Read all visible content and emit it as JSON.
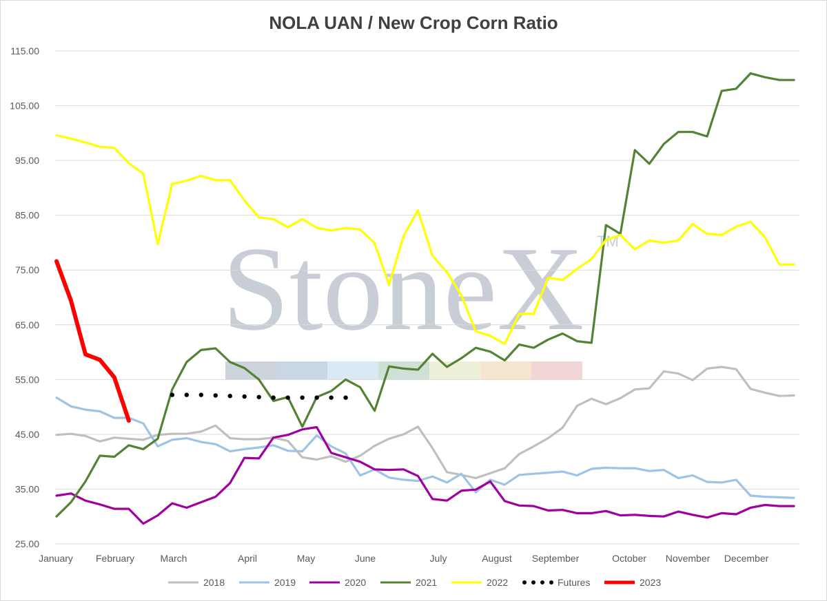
{
  "chart_data": {
    "type": "line",
    "title": "NOLA UAN / New Crop Corn Ratio",
    "xlabel": "",
    "ylabel": "",
    "ylim": [
      25,
      115
    ],
    "yticks": [
      "25.00",
      "35.00",
      "45.00",
      "55.00",
      "65.00",
      "75.00",
      "85.00",
      "95.00",
      "105.00",
      "115.00"
    ],
    "x_categories": [
      "January",
      "February",
      "March",
      "April",
      "May",
      "June",
      "July",
      "August",
      "September",
      "October",
      "November",
      "December"
    ],
    "x_axis_note": "weekly observations, week 1 to 52",
    "grid": true,
    "legend_position": "bottom",
    "watermark": "StoneX",
    "series": [
      {
        "name": "2018",
        "color": "#bfbfbf",
        "style": "solid",
        "x": [
          1,
          2,
          3,
          4,
          5,
          6,
          7,
          8,
          9,
          10,
          11,
          12,
          13,
          14,
          15,
          16,
          17,
          18,
          19,
          20,
          21,
          22,
          23,
          24,
          25,
          26,
          27,
          28,
          29,
          30,
          31,
          32,
          33,
          34,
          35,
          36,
          37,
          38,
          39,
          40,
          41,
          42,
          43,
          44,
          45,
          46,
          47,
          48,
          49,
          50,
          51,
          52
        ],
        "values": [
          44.9,
          45.1,
          44.7,
          43.7,
          44.4,
          44.2,
          44.0,
          44.9,
          45.1,
          45.1,
          45.5,
          46.6,
          44.3,
          44.1,
          44.1,
          44.4,
          43.8,
          40.8,
          40.4,
          41.0,
          40.0,
          41.1,
          42.9,
          44.2,
          45.0,
          46.4,
          42.5,
          38.1,
          37.6,
          37.0,
          37.9,
          38.8,
          41.4,
          42.8,
          44.3,
          46.2,
          50.2,
          51.5,
          50.5,
          51.6,
          53.2,
          53.4,
          56.5,
          56.1,
          54.9,
          57.0,
          57.3,
          56.9,
          53.3,
          52.6,
          52.0,
          52.1
        ]
      },
      {
        "name": "2019",
        "color": "#9dc3e6",
        "style": "solid",
        "x": [
          1,
          2,
          3,
          4,
          5,
          6,
          7,
          8,
          9,
          10,
          11,
          12,
          13,
          14,
          15,
          16,
          17,
          18,
          19,
          20,
          21,
          22,
          23,
          24,
          25,
          26,
          27,
          28,
          29,
          30,
          31,
          32,
          33,
          34,
          35,
          36,
          37,
          38,
          39,
          40,
          41,
          42,
          43,
          44,
          45,
          46,
          47,
          48,
          49,
          50,
          51,
          52
        ],
        "values": [
          51.7,
          50.1,
          49.5,
          49.2,
          48.0,
          48.0,
          47.0,
          42.8,
          44.0,
          44.3,
          43.6,
          43.2,
          41.9,
          42.3,
          42.6,
          43.0,
          42.0,
          41.9,
          44.8,
          42.8,
          41.5,
          37.5,
          38.6,
          37.1,
          36.7,
          36.5,
          37.3,
          36.2,
          37.8,
          34.4,
          36.7,
          35.8,
          37.6,
          37.8,
          38.0,
          38.2,
          37.5,
          38.7,
          38.9,
          38.8,
          38.8,
          38.3,
          38.5,
          37.0,
          37.5,
          36.3,
          36.2,
          36.7,
          33.8,
          33.6,
          33.5,
          33.4
        ]
      },
      {
        "name": "2020",
        "color": "#a000a0",
        "style": "solid",
        "x": [
          1,
          2,
          3,
          4,
          5,
          6,
          7,
          8,
          9,
          10,
          11,
          12,
          13,
          14,
          15,
          16,
          17,
          18,
          19,
          20,
          21,
          22,
          23,
          24,
          25,
          26,
          27,
          28,
          29,
          30,
          31,
          32,
          33,
          34,
          35,
          36,
          37,
          38,
          39,
          40,
          41,
          42,
          43,
          44,
          45,
          46,
          47,
          48,
          49,
          50,
          51,
          52
        ],
        "values": [
          33.8,
          34.2,
          32.9,
          32.2,
          31.4,
          31.4,
          28.7,
          30.2,
          32.4,
          31.6,
          32.6,
          33.6,
          36.1,
          40.7,
          40.6,
          44.4,
          44.9,
          45.9,
          46.3,
          41.6,
          40.8,
          40.0,
          38.6,
          38.5,
          38.6,
          37.4,
          33.2,
          32.9,
          34.7,
          34.9,
          36.4,
          32.8,
          32.0,
          31.9,
          31.1,
          31.2,
          30.6,
          30.6,
          31.0,
          30.2,
          30.3,
          30.1,
          30.0,
          30.9,
          30.3,
          29.8,
          30.6,
          30.4,
          31.6,
          32.1,
          31.9,
          31.9
        ]
      },
      {
        "name": "2021",
        "color": "#548235",
        "style": "solid",
        "x": [
          1,
          2,
          3,
          4,
          5,
          6,
          7,
          8,
          9,
          10,
          11,
          12,
          13,
          14,
          15,
          16,
          17,
          18,
          19,
          20,
          21,
          22,
          23,
          24,
          25,
          26,
          27,
          28,
          29,
          30,
          31,
          32,
          33,
          34,
          35,
          36,
          37,
          38,
          39,
          40,
          41,
          42,
          43,
          44,
          45,
          46,
          47,
          48,
          49,
          50,
          51,
          52
        ],
        "values": [
          30.0,
          32.6,
          36.4,
          41.1,
          40.9,
          43.0,
          42.3,
          44.2,
          53.2,
          58.2,
          60.4,
          60.7,
          58.2,
          57.1,
          55.0,
          51.1,
          51.8,
          46.4,
          51.8,
          52.9,
          55.0,
          53.6,
          49.3,
          57.4,
          57.0,
          56.8,
          59.7,
          57.3,
          58.9,
          60.8,
          60.1,
          58.5,
          61.4,
          60.8,
          62.3,
          63.4,
          62.0,
          61.7,
          83.2,
          81.6,
          96.9,
          94.4,
          98.0,
          100.2,
          100.2,
          99.4,
          107.7,
          108.1,
          110.9,
          110.2,
          109.7,
          109.7
        ]
      },
      {
        "name": "2022",
        "color": "#ffff00",
        "style": "solid",
        "x": [
          1,
          2,
          3,
          4,
          5,
          6,
          7,
          8,
          9,
          10,
          11,
          12,
          13,
          14,
          15,
          16,
          17,
          18,
          19,
          20,
          21,
          22,
          23,
          24,
          25,
          26,
          27,
          28,
          29,
          30,
          31,
          32,
          33,
          34,
          35,
          36,
          37,
          38,
          39,
          40,
          41,
          42,
          43,
          44,
          45,
          46,
          47,
          48,
          49,
          50,
          51,
          52
        ],
        "values": [
          99.6,
          99.0,
          98.3,
          97.5,
          97.3,
          94.5,
          92.6,
          79.7,
          90.7,
          91.3,
          92.2,
          91.4,
          91.4,
          87.7,
          84.6,
          84.3,
          82.8,
          84.3,
          82.7,
          82.2,
          82.7,
          82.4,
          79.9,
          72.3,
          81.2,
          85.9,
          77.6,
          74.6,
          70.4,
          63.8,
          63.0,
          61.5,
          67.0,
          67.0,
          73.6,
          73.2,
          75.2,
          77.0,
          80.5,
          81.4,
          78.8,
          80.4,
          80.0,
          80.4,
          83.4,
          81.6,
          81.4,
          82.9,
          83.8,
          81.0,
          76.0,
          76.0
        ]
      },
      {
        "name": "Futures",
        "color": "#000000",
        "style": "dotted",
        "x": [
          9,
          10,
          11,
          12,
          13,
          14,
          15,
          16,
          17,
          18,
          19,
          20,
          21
        ],
        "values": [
          52.2,
          52.2,
          52.2,
          52.1,
          52.0,
          51.9,
          51.8,
          51.7,
          51.7,
          51.7,
          51.7,
          51.7,
          51.7
        ]
      },
      {
        "name": "2023",
        "color": "#ff0000",
        "style": "solid-bold",
        "x": [
          1,
          2,
          3,
          4,
          5,
          6
        ],
        "values": [
          76.6,
          69.4,
          59.6,
          58.6,
          55.4,
          47.5
        ]
      }
    ]
  }
}
